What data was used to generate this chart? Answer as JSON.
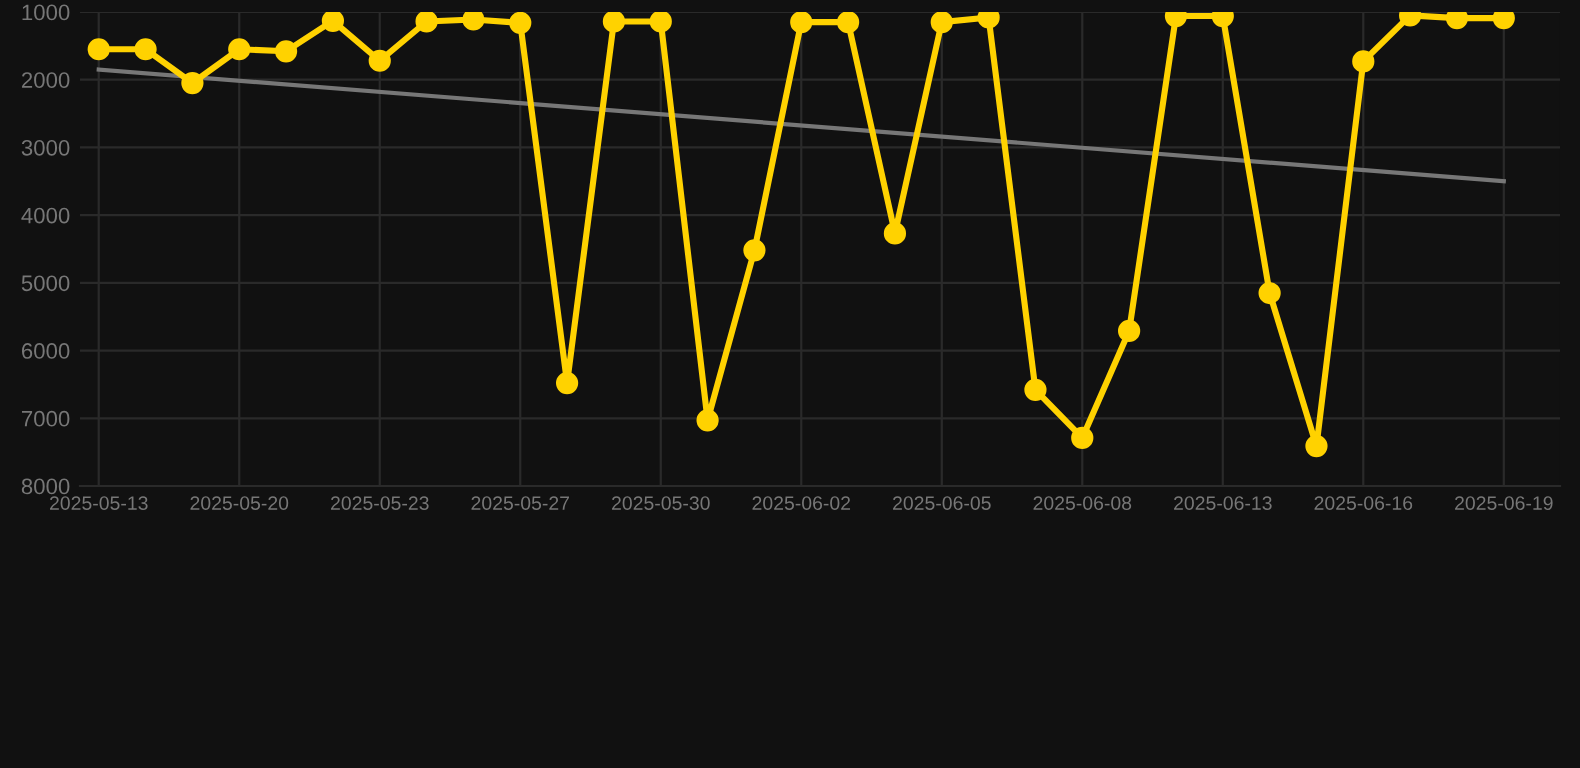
{
  "chart_data": {
    "type": "line",
    "categories": [
      "2025-05-13",
      null,
      null,
      "2025-05-20",
      null,
      null,
      "2025-05-23",
      null,
      null,
      "2025-05-27",
      null,
      null,
      "2025-05-30",
      null,
      null,
      "2025-06-02",
      null,
      null,
      "2025-06-05",
      null,
      null,
      "2025-06-08",
      null,
      null,
      "2025-06-13",
      null,
      null,
      "2025-06-16",
      null,
      null,
      "2025-06-19"
    ],
    "series": [
      {
        "color": "#ffd200",
        "marker": "circle",
        "values": [
          1550,
          1550,
          2050,
          1550,
          1580,
          1130,
          1720,
          1140,
          1110,
          1160,
          6480,
          1140,
          1140,
          7030,
          4520,
          1150,
          1150,
          4270,
          1150,
          1080,
          6580,
          7290,
          5710,
          1060,
          1060,
          5150,
          7410,
          1730,
          1050,
          1090,
          1090
        ]
      },
      {
        "color": "#777777",
        "marker": "none",
        "values": [
          1850,
          null,
          null,
          null,
          null,
          null,
          null,
          null,
          null,
          null,
          null,
          null,
          null,
          null,
          null,
          null,
          null,
          null,
          null,
          null,
          null,
          null,
          null,
          null,
          null,
          null,
          null,
          null,
          null,
          null,
          3500
        ]
      }
    ],
    "ylim": [
      8000,
      1000
    ],
    "yticks": [
      1000,
      2000,
      3000,
      4000,
      5000,
      6000,
      7000,
      8000
    ],
    "grid": true
  }
}
